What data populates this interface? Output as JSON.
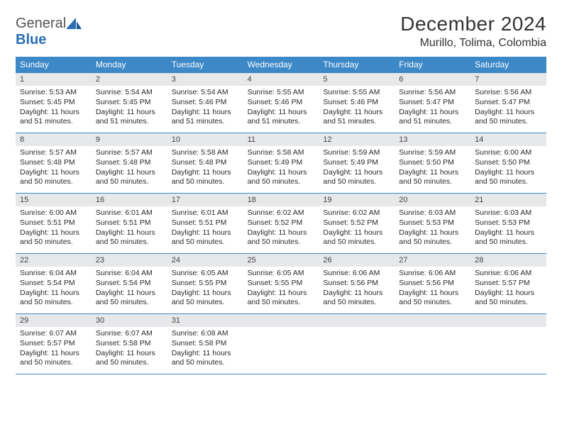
{
  "logo": {
    "word1": "General",
    "word2": "Blue"
  },
  "title": "December 2024",
  "location": "Murillo, Tolima, Colombia",
  "header_bg": "#3d88c7",
  "rule_color": "#3d88c7",
  "daynum_bg": "#e7e8ea",
  "dow": [
    "Sunday",
    "Monday",
    "Tuesday",
    "Wednesday",
    "Thursday",
    "Friday",
    "Saturday"
  ],
  "weeks": [
    [
      {
        "n": "1",
        "sr": "5:53 AM",
        "ss": "5:45 PM",
        "dl": "11 hours and 51 minutes."
      },
      {
        "n": "2",
        "sr": "5:54 AM",
        "ss": "5:45 PM",
        "dl": "11 hours and 51 minutes."
      },
      {
        "n": "3",
        "sr": "5:54 AM",
        "ss": "5:46 PM",
        "dl": "11 hours and 51 minutes."
      },
      {
        "n": "4",
        "sr": "5:55 AM",
        "ss": "5:46 PM",
        "dl": "11 hours and 51 minutes."
      },
      {
        "n": "5",
        "sr": "5:55 AM",
        "ss": "5:46 PM",
        "dl": "11 hours and 51 minutes."
      },
      {
        "n": "6",
        "sr": "5:56 AM",
        "ss": "5:47 PM",
        "dl": "11 hours and 51 minutes."
      },
      {
        "n": "7",
        "sr": "5:56 AM",
        "ss": "5:47 PM",
        "dl": "11 hours and 50 minutes."
      }
    ],
    [
      {
        "n": "8",
        "sr": "5:57 AM",
        "ss": "5:48 PM",
        "dl": "11 hours and 50 minutes."
      },
      {
        "n": "9",
        "sr": "5:57 AM",
        "ss": "5:48 PM",
        "dl": "11 hours and 50 minutes."
      },
      {
        "n": "10",
        "sr": "5:58 AM",
        "ss": "5:48 PM",
        "dl": "11 hours and 50 minutes."
      },
      {
        "n": "11",
        "sr": "5:58 AM",
        "ss": "5:49 PM",
        "dl": "11 hours and 50 minutes."
      },
      {
        "n": "12",
        "sr": "5:59 AM",
        "ss": "5:49 PM",
        "dl": "11 hours and 50 minutes."
      },
      {
        "n": "13",
        "sr": "5:59 AM",
        "ss": "5:50 PM",
        "dl": "11 hours and 50 minutes."
      },
      {
        "n": "14",
        "sr": "6:00 AM",
        "ss": "5:50 PM",
        "dl": "11 hours and 50 minutes."
      }
    ],
    [
      {
        "n": "15",
        "sr": "6:00 AM",
        "ss": "5:51 PM",
        "dl": "11 hours and 50 minutes."
      },
      {
        "n": "16",
        "sr": "6:01 AM",
        "ss": "5:51 PM",
        "dl": "11 hours and 50 minutes."
      },
      {
        "n": "17",
        "sr": "6:01 AM",
        "ss": "5:51 PM",
        "dl": "11 hours and 50 minutes."
      },
      {
        "n": "18",
        "sr": "6:02 AM",
        "ss": "5:52 PM",
        "dl": "11 hours and 50 minutes."
      },
      {
        "n": "19",
        "sr": "6:02 AM",
        "ss": "5:52 PM",
        "dl": "11 hours and 50 minutes."
      },
      {
        "n": "20",
        "sr": "6:03 AM",
        "ss": "5:53 PM",
        "dl": "11 hours and 50 minutes."
      },
      {
        "n": "21",
        "sr": "6:03 AM",
        "ss": "5:53 PM",
        "dl": "11 hours and 50 minutes."
      }
    ],
    [
      {
        "n": "22",
        "sr": "6:04 AM",
        "ss": "5:54 PM",
        "dl": "11 hours and 50 minutes."
      },
      {
        "n": "23",
        "sr": "6:04 AM",
        "ss": "5:54 PM",
        "dl": "11 hours and 50 minutes."
      },
      {
        "n": "24",
        "sr": "6:05 AM",
        "ss": "5:55 PM",
        "dl": "11 hours and 50 minutes."
      },
      {
        "n": "25",
        "sr": "6:05 AM",
        "ss": "5:55 PM",
        "dl": "11 hours and 50 minutes."
      },
      {
        "n": "26",
        "sr": "6:06 AM",
        "ss": "5:56 PM",
        "dl": "11 hours and 50 minutes."
      },
      {
        "n": "27",
        "sr": "6:06 AM",
        "ss": "5:56 PM",
        "dl": "11 hours and 50 minutes."
      },
      {
        "n": "28",
        "sr": "6:06 AM",
        "ss": "5:57 PM",
        "dl": "11 hours and 50 minutes."
      }
    ],
    [
      {
        "n": "29",
        "sr": "6:07 AM",
        "ss": "5:57 PM",
        "dl": "11 hours and 50 minutes."
      },
      {
        "n": "30",
        "sr": "6:07 AM",
        "ss": "5:58 PM",
        "dl": "11 hours and 50 minutes."
      },
      {
        "n": "31",
        "sr": "6:08 AM",
        "ss": "5:58 PM",
        "dl": "11 hours and 50 minutes."
      },
      {
        "empty": true
      },
      {
        "empty": true
      },
      {
        "empty": true
      },
      {
        "empty": true
      }
    ]
  ],
  "labels": {
    "sunrise": "Sunrise:",
    "sunset": "Sunset:",
    "daylight": "Daylight:"
  }
}
